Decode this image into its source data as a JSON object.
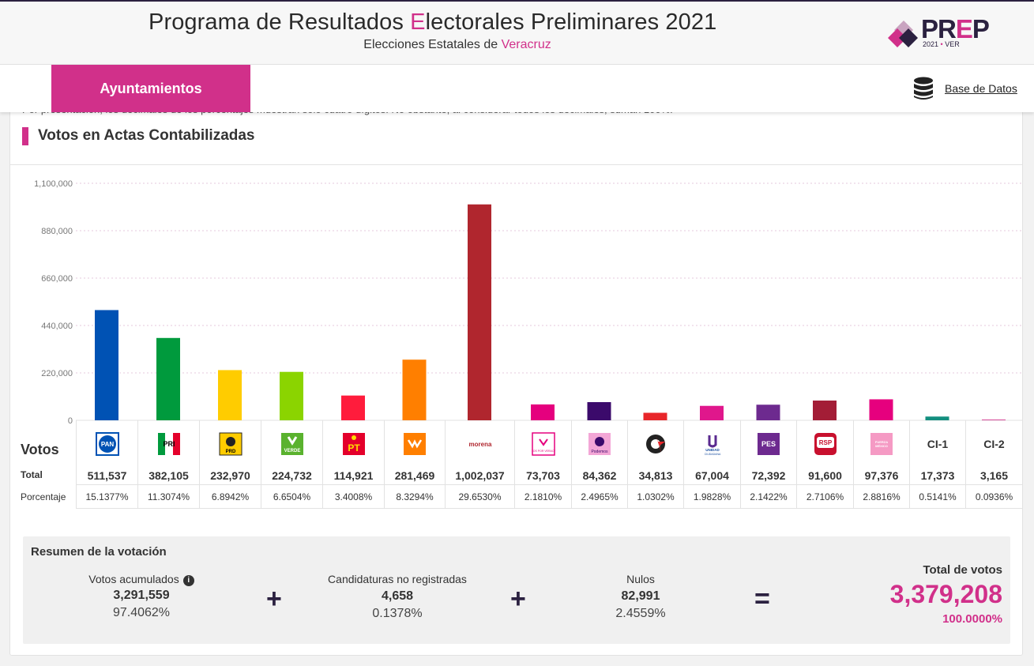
{
  "header": {
    "title_before": "Programa de Resultados ",
    "title_accent": "E",
    "title_after": "lectorales Preliminares 2021",
    "subtitle_before": "Elecciones Estatales de ",
    "subtitle_state": "Veracruz",
    "logo_text_a": "PR",
    "logo_text_e": "E",
    "logo_text_b": "P",
    "logo_year": "2021",
    "logo_state": "VER"
  },
  "nav": {
    "active_tab": "Ayuntamientos",
    "database_link": "Base de Datos"
  },
  "cut_note": "Por presentación, los decimales de los porcentajes muestran sólo cuatro dígitos. No obstante, al considerar todos los decimales, suman 100%.",
  "section_title": "Votos en Actas Contabilizadas",
  "colors": {
    "accent": "#d1308a",
    "brand_dark": "#2b2140"
  },
  "chart_data": {
    "type": "bar",
    "categories": [
      "PAN",
      "PRI",
      "PRD",
      "VERDE",
      "PT",
      "MC",
      "morena",
      "TODOS POR VERACRUZ",
      "Podemos",
      "Cardenista",
      "UNIDAD CIUDADANA",
      "PES",
      "RSP",
      "FUERZA POR MÉXICO",
      "CI-1",
      "CI-2"
    ],
    "values": [
      511537,
      382105,
      232970,
      224732,
      114921,
      281469,
      1002037,
      73703,
      84362,
      34813,
      67004,
      72392,
      91600,
      97376,
      17373,
      3165
    ],
    "colors": [
      "#0052b4",
      "#009a3d",
      "#ffcc00",
      "#8bd400",
      "#ff1c3c",
      "#ff7f00",
      "#b0262e",
      "#e5007e",
      "#3b0a6b",
      "#e8262a",
      "#e0178c",
      "#6d2a8f",
      "#a31d36",
      "#e6007e",
      "#138f7f",
      "#d1308a"
    ],
    "ylim": [
      0,
      1100000
    ],
    "yticks": [
      "0",
      "220,000",
      "440,000",
      "660,000",
      "880,000",
      "1,100,000"
    ],
    "grid": true
  },
  "table": {
    "row_label_votes": "Votos",
    "row_label_total": "Total",
    "row_label_pct": "Porcentaje",
    "parties": [
      {
        "id": "pan",
        "logo": "PAN",
        "total": "511,537",
        "pct": "15.1377%"
      },
      {
        "id": "pri",
        "logo": "PRI",
        "total": "382,105",
        "pct": "11.3074%"
      },
      {
        "id": "prd",
        "logo": "PRD",
        "total": "232,970",
        "pct": "6.8942%"
      },
      {
        "id": "verde",
        "logo": "VERDE",
        "total": "224,732",
        "pct": "6.6504%"
      },
      {
        "id": "pt",
        "logo": "PT",
        "total": "114,921",
        "pct": "3.4008%"
      },
      {
        "id": "mc",
        "logo": "",
        "total": "281,469",
        "pct": "8.3294%"
      },
      {
        "id": "morena",
        "logo": "morena",
        "total": "1,002,037",
        "pct": "29.6530%"
      },
      {
        "id": "todos",
        "logo": "TODOS POR VERACRUZ",
        "total": "73,703",
        "pct": "2.1810%"
      },
      {
        "id": "podemos",
        "logo": "Podemos",
        "total": "84,362",
        "pct": "2.4965%"
      },
      {
        "id": "cardenista",
        "logo": "",
        "total": "34,813",
        "pct": "1.0302%"
      },
      {
        "id": "unidad",
        "logo": "UNIDAD CIUDADANA",
        "total": "67,004",
        "pct": "1.9828%"
      },
      {
        "id": "pes",
        "logo": "PES",
        "total": "72,392",
        "pct": "2.1422%"
      },
      {
        "id": "rsp",
        "logo": "RSP",
        "total": "91,600",
        "pct": "2.7106%"
      },
      {
        "id": "fxm",
        "logo": "FUERZA MÉXICO",
        "total": "97,376",
        "pct": "2.8816%"
      },
      {
        "id": "ci1",
        "logo": "CI-1",
        "total": "17,373",
        "pct": "0.5141%"
      },
      {
        "id": "ci2",
        "logo": "CI-2",
        "total": "3,165",
        "pct": "0.0936%"
      }
    ]
  },
  "summary": {
    "title": "Resumen de la votación",
    "acumulados_label": "Votos acumulados",
    "acumulados_value": "3,291,559",
    "acumulados_pct": "97.4062%",
    "no_reg_label": "Candidaturas no registradas",
    "no_reg_value": "4,658",
    "no_reg_pct": "0.1378%",
    "nulos_label": "Nulos",
    "nulos_value": "82,991",
    "nulos_pct": "2.4559%",
    "total_label": "Total de votos",
    "total_value": "3,379,208",
    "total_pct": "100.0000%",
    "op_plus": "+",
    "op_equals": "="
  }
}
